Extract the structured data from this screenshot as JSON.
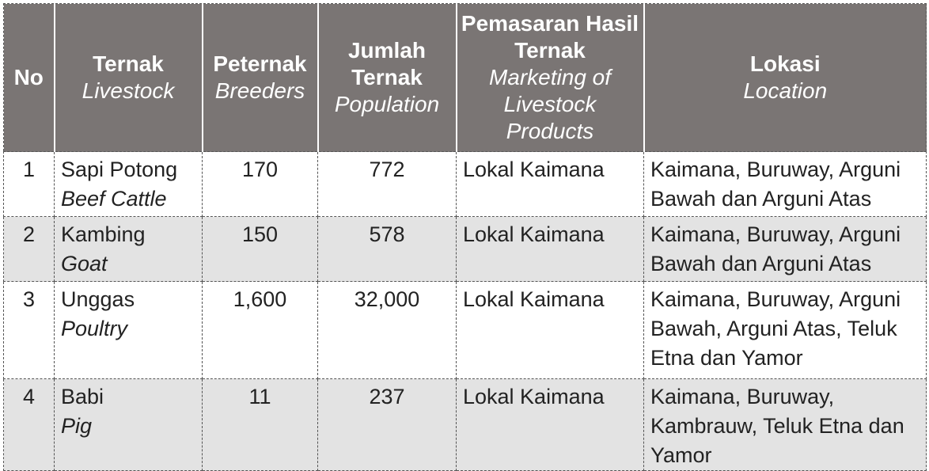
{
  "header": {
    "no": "No",
    "ternak_id": "Ternak",
    "ternak_en": "Livestock",
    "peternak_id": "Peternak",
    "peternak_en": "Breeders",
    "jumlah_id": "Jumlah Ternak",
    "jumlah_en": "Population",
    "pemasaran_id": "Pemasaran Hasil Ternak",
    "pemasaran_en": "Marketing of Livestock Products",
    "lokasi_id": "Lokasi",
    "lokasi_en": "Location"
  },
  "rows": [
    {
      "no": "1",
      "ternak": "Sapi Potong",
      "ternak_en": "Beef Cattle",
      "peternak": "170",
      "jumlah": "772",
      "pemasaran": "Lokal Kaimana",
      "lokasi": "Kaimana, Buruway, Arguni Bawah dan Arguni Atas"
    },
    {
      "no": "2",
      "ternak": "Kambing",
      "ternak_en": "Goat",
      "peternak": "150",
      "jumlah": "578",
      "pemasaran": "Lokal Kaimana",
      "lokasi": "Kaimana, Buruway, Arguni Bawah dan Arguni Atas"
    },
    {
      "no": "3",
      "ternak": "Unggas",
      "ternak_en": "Poultry",
      "peternak": "1,600",
      "jumlah": "32,000",
      "pemasaran": "Lokal Kaimana",
      "lokasi": "Kaimana, Buruway, Arguni Bawah, Arguni Atas, Teluk Etna dan Yamor"
    },
    {
      "no": "4",
      "ternak": "Babi",
      "ternak_en": "Pig",
      "peternak": "11",
      "jumlah": "237",
      "pemasaran": "Lokal Kaimana",
      "lokasi": "Kaimana, Buruway, Kambrauw, Teluk Etna dan Yamor"
    }
  ]
}
